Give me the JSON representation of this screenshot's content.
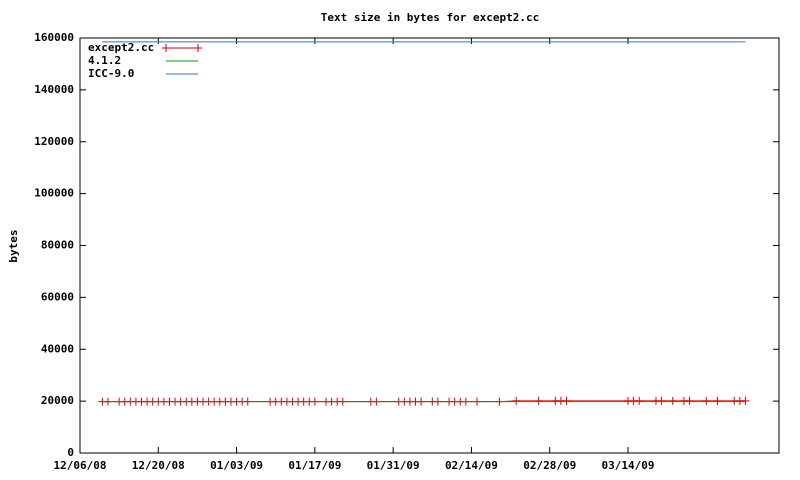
{
  "chart_data": {
    "type": "line",
    "title": "Text size in bytes for except2.cc",
    "y_label": "bytes",
    "x": [
      "12/10/08",
      "12/11/08",
      "12/13/08",
      "12/14/08",
      "12/15/08",
      "12/16/08",
      "12/17/08",
      "12/18/08",
      "12/19/08",
      "12/20/08",
      "12/21/08",
      "12/22/08",
      "12/23/08",
      "12/24/08",
      "12/25/08",
      "12/26/08",
      "12/27/08",
      "12/28/08",
      "12/29/08",
      "12/30/08",
      "12/31/08",
      "01/01/09",
      "01/02/09",
      "01/03/09",
      "01/04/09",
      "01/05/09",
      "01/09/09",
      "01/10/09",
      "01/11/09",
      "01/12/09",
      "01/13/09",
      "01/14/09",
      "01/15/09",
      "01/16/09",
      "01/17/09",
      "01/19/09",
      "01/20/09",
      "01/21/09",
      "01/22/09",
      "01/27/09",
      "01/28/09",
      "02/01/09",
      "02/02/09",
      "02/03/09",
      "02/04/09",
      "02/05/09",
      "02/07/09",
      "02/08/09",
      "02/10/09",
      "02/11/09",
      "02/12/09",
      "02/13/09",
      "02/15/09",
      "02/19/09",
      "02/22/09",
      "02/26/09",
      "03/01/09",
      "03/02/09",
      "03/03/09",
      "03/14/09",
      "03/15/09",
      "03/16/09",
      "03/19/09",
      "03/20/09",
      "03/22/09",
      "03/24/09",
      "03/25/09",
      "03/28/09",
      "03/30/09",
      "04/02/09",
      "04/03/09",
      "04/04/09"
    ],
    "series": [
      {
        "name": "except2.cc",
        "color": "#e00000",
        "marker": "+",
        "values": [
          19800,
          19800,
          19800,
          19800,
          19800,
          19800,
          19800,
          19800,
          19800,
          19800,
          19800,
          19800,
          19800,
          19800,
          19800,
          19800,
          19800,
          19800,
          19800,
          19800,
          19800,
          19800,
          19800,
          19800,
          19800,
          19800,
          19800,
          19800,
          19800,
          19800,
          19800,
          19800,
          19800,
          19800,
          19800,
          19800,
          19800,
          19800,
          19800,
          19800,
          19800,
          19800,
          19800,
          19800,
          19800,
          19800,
          19800,
          19800,
          19800,
          19800,
          19800,
          19800,
          19800,
          19800,
          20100,
          20100,
          20100,
          20100,
          20100,
          20100,
          20100,
          20100,
          20100,
          20100,
          20100,
          20100,
          20100,
          20100,
          20100,
          20100,
          20100,
          20100
        ]
      },
      {
        "name": "4.1.2",
        "color": "#00a000",
        "values": [
          19800,
          19800,
          19800,
          19800,
          19800,
          19800,
          19800,
          19800,
          19800,
          19800,
          19800,
          19800,
          19800,
          19800,
          19800,
          19800,
          19800,
          19800,
          19800,
          19800,
          19800,
          19800,
          19800,
          19800,
          19800,
          19800,
          19800,
          19800,
          19800,
          19800,
          19800,
          19800,
          19800,
          19800,
          19800,
          19800,
          19800,
          19800,
          19800,
          19800,
          19800,
          19800,
          19800,
          19800,
          19800,
          19800,
          19800,
          19800,
          19800,
          19800,
          19800,
          19800,
          19800,
          19800,
          19800,
          19800,
          19800,
          19800,
          19800,
          19800,
          19800,
          19800,
          19800,
          19800,
          19800,
          19800,
          19800,
          19800,
          19800,
          19800,
          19800,
          19800
        ]
      },
      {
        "name": "ICC-9.0",
        "color": "#2f74c0",
        "values": [
          158500,
          158500,
          158500,
          158500,
          158500,
          158500,
          158500,
          158500,
          158500,
          158500,
          158500,
          158500,
          158500,
          158500,
          158500,
          158500,
          158500,
          158500,
          158500,
          158500,
          158500,
          158500,
          158500,
          158500,
          158500,
          158500,
          158500,
          158500,
          158500,
          158500,
          158500,
          158500,
          158500,
          158500,
          158500,
          158500,
          158500,
          158500,
          158500,
          158500,
          158500,
          158500,
          158500,
          158500,
          158500,
          158500,
          158500,
          158500,
          158500,
          158500,
          158500,
          158500,
          158500,
          158500,
          158500,
          158500,
          158500,
          158500,
          158500,
          158500,
          158500,
          158500,
          158500,
          158500,
          158500,
          158500,
          158500,
          158500,
          158500,
          158500,
          158500,
          158500
        ]
      }
    ],
    "xlim": [
      "12/06/08",
      "04/10/09"
    ],
    "xticks": [
      "12/06/08",
      "12/20/08",
      "01/03/09",
      "01/17/09",
      "01/31/09",
      "02/14/09",
      "02/28/09",
      "03/14/09"
    ],
    "ylim": [
      0,
      160000
    ],
    "yticks": [
      0,
      20000,
      40000,
      60000,
      80000,
      100000,
      120000,
      140000,
      160000
    ],
    "legend": "top-left"
  }
}
